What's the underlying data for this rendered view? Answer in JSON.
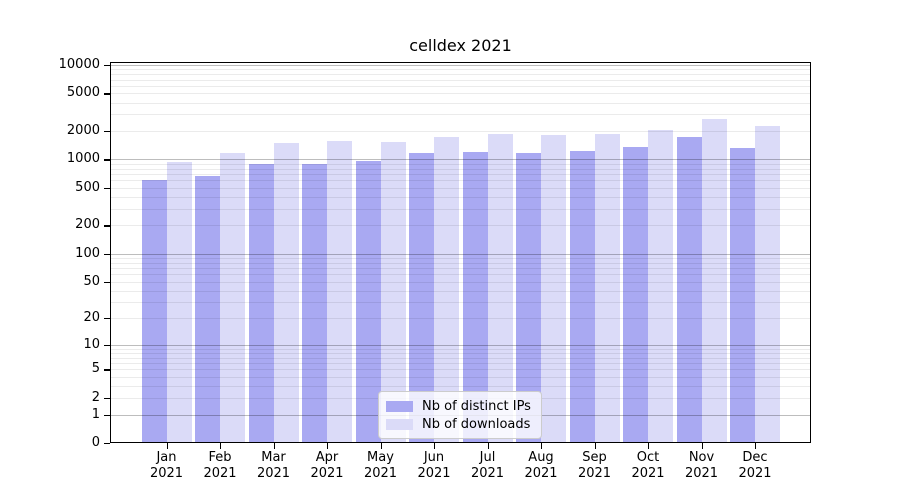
{
  "title": "celldex 2021",
  "chart_data": {
    "type": "bar",
    "title": "celldex 2021",
    "categories": [
      "Jan 2021",
      "Feb 2021",
      "Mar 2021",
      "Apr 2021",
      "May 2021",
      "Jun 2021",
      "Jul 2021",
      "Aug 2021",
      "Sep 2021",
      "Oct 2021",
      "Nov 2021",
      "Dec 2021"
    ],
    "series": [
      {
        "name": "Nb of distinct IPs",
        "color": "#a9a9f2",
        "values": [
          605,
          670,
          895,
          890,
          970,
          1160,
          1190,
          1160,
          1230,
          1345,
          1740,
          1320
        ]
      },
      {
        "name": "Nb of downloads",
        "color": "#dbdbf8",
        "values": [
          940,
          1170,
          1495,
          1570,
          1530,
          1730,
          1860,
          1815,
          1870,
          2050,
          2685,
          2240
        ]
      }
    ],
    "xlabel": "",
    "ylabel": "",
    "yscale": "log1p",
    "yticks": [
      0,
      1,
      2,
      5,
      10,
      20,
      50,
      100,
      200,
      500,
      1000,
      2000,
      5000,
      10000
    ],
    "ylim": [
      0,
      10000
    ],
    "grid": "both",
    "legend_position": "lower-center"
  },
  "legend": {
    "entries": [
      {
        "label": "Nb of distinct IPs",
        "color": "#a9a9f2"
      },
      {
        "label": "Nb of downloads",
        "color": "#dbdbf8"
      }
    ]
  }
}
